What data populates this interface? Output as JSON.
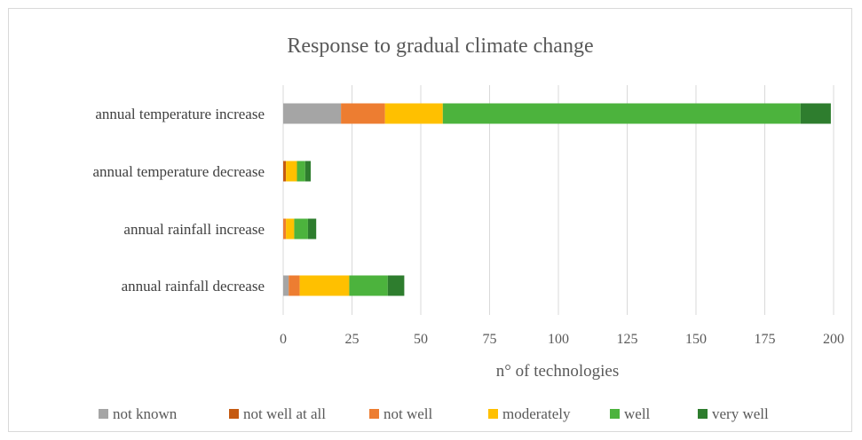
{
  "chart_data": {
    "type": "bar",
    "orientation": "horizontal",
    "stacked": true,
    "title": "Response to gradual climate change",
    "xlabel": "n° of technologies",
    "ylabel": "",
    "xlim": [
      0,
      200
    ],
    "xticks": [
      0,
      25,
      50,
      75,
      100,
      125,
      150,
      175,
      200
    ],
    "grid": "vertical",
    "legend_position": "bottom",
    "categories": [
      "annual temperature increase",
      "annual temperature decrease",
      "annual rainfall increase",
      "annual rainfall decrease"
    ],
    "series": [
      {
        "name": "not known",
        "color": "#a5a5a5",
        "values": [
          21,
          0,
          0,
          2
        ]
      },
      {
        "name": "not well at all",
        "color": "#c55a11",
        "values": [
          0,
          1,
          0,
          0
        ]
      },
      {
        "name": "not well",
        "color": "#ed7d31",
        "values": [
          16,
          0,
          1,
          4
        ]
      },
      {
        "name": "moderately",
        "color": "#ffc000",
        "values": [
          21,
          4,
          3,
          18
        ]
      },
      {
        "name": "well",
        "color": "#4cb33d",
        "values": [
          130,
          3,
          5,
          14
        ]
      },
      {
        "name": "very well",
        "color": "#2e7d2e",
        "values": [
          11,
          2,
          3,
          6
        ]
      }
    ]
  }
}
